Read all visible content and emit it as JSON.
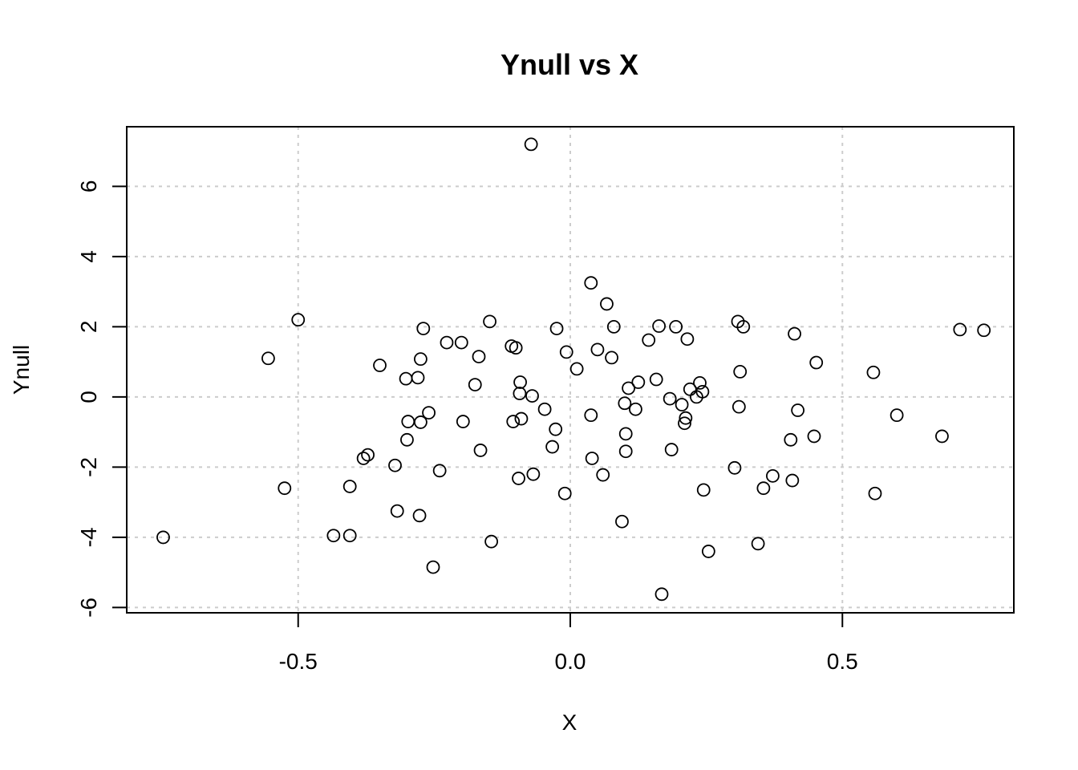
{
  "chart_data": {
    "type": "scatter",
    "title": "Ynull vs X",
    "xlabel": "X",
    "ylabel": "Ynull",
    "xlim": [
      -0.815,
      0.815
    ],
    "ylim": [
      -6.15,
      7.7
    ],
    "xticks": [
      -0.5,
      0.0,
      0.5
    ],
    "xtick_labels": [
      "-0.5",
      "0.0",
      "0.5"
    ],
    "yticks": [
      -6,
      -4,
      -2,
      0,
      2,
      4,
      6
    ],
    "ytick_labels": [
      "-6",
      "-4",
      "-2",
      "0",
      "2",
      "4",
      "6"
    ],
    "grid": true,
    "marker": "open-circle",
    "points": [
      [
        -0.748,
        -4.0
      ],
      [
        -0.555,
        1.1
      ],
      [
        -0.525,
        -2.6
      ],
      [
        -0.5,
        2.2
      ],
      [
        -0.435,
        -3.95
      ],
      [
        -0.405,
        -2.55
      ],
      [
        -0.405,
        -3.95
      ],
      [
        -0.38,
        -1.75
      ],
      [
        -0.372,
        -1.65
      ],
      [
        -0.35,
        0.9
      ],
      [
        -0.322,
        -1.95
      ],
      [
        -0.318,
        -3.25
      ],
      [
        -0.302,
        0.52
      ],
      [
        -0.3,
        -1.22
      ],
      [
        -0.298,
        -0.7
      ],
      [
        -0.28,
        0.55
      ],
      [
        -0.277,
        -3.38
      ],
      [
        -0.275,
        1.08
      ],
      [
        -0.275,
        -0.72
      ],
      [
        -0.27,
        1.95
      ],
      [
        -0.26,
        -0.45
      ],
      [
        -0.252,
        -4.85
      ],
      [
        -0.24,
        -2.1
      ],
      [
        -0.227,
        1.55
      ],
      [
        -0.2,
        1.55
      ],
      [
        -0.197,
        -0.7
      ],
      [
        -0.175,
        0.35
      ],
      [
        -0.168,
        1.15
      ],
      [
        -0.165,
        -1.52
      ],
      [
        -0.148,
        2.15
      ],
      [
        -0.145,
        -4.12
      ],
      [
        -0.108,
        1.45
      ],
      [
        -0.105,
        -0.7
      ],
      [
        -0.1,
        1.4
      ],
      [
        -0.095,
        -2.32
      ],
      [
        -0.093,
        0.1
      ],
      [
        -0.092,
        0.42
      ],
      [
        -0.09,
        -0.62
      ],
      [
        -0.072,
        7.2
      ],
      [
        -0.07,
        0.03
      ],
      [
        -0.068,
        -2.2
      ],
      [
        -0.047,
        -0.35
      ],
      [
        -0.033,
        -1.42
      ],
      [
        -0.027,
        -0.92
      ],
      [
        -0.025,
        1.95
      ],
      [
        -0.01,
        -2.75
      ],
      [
        -0.007,
        1.28
      ],
      [
        0.012,
        0.8
      ],
      [
        0.038,
        3.25
      ],
      [
        0.038,
        -0.52
      ],
      [
        0.04,
        -1.75
      ],
      [
        0.05,
        1.35
      ],
      [
        0.06,
        -2.22
      ],
      [
        0.067,
        2.65
      ],
      [
        0.076,
        1.12
      ],
      [
        0.08,
        2.0
      ],
      [
        0.095,
        -3.55
      ],
      [
        0.1,
        -0.18
      ],
      [
        0.102,
        -1.05
      ],
      [
        0.102,
        -1.55
      ],
      [
        0.107,
        0.25
      ],
      [
        0.12,
        -0.35
      ],
      [
        0.125,
        0.42
      ],
      [
        0.144,
        1.62
      ],
      [
        0.158,
        0.5
      ],
      [
        0.163,
        2.02
      ],
      [
        0.168,
        -5.62
      ],
      [
        0.183,
        -0.05
      ],
      [
        0.186,
        -1.5
      ],
      [
        0.194,
        2.0
      ],
      [
        0.205,
        -0.22
      ],
      [
        0.21,
        -0.75
      ],
      [
        0.212,
        -0.6
      ],
      [
        0.215,
        1.65
      ],
      [
        0.22,
        0.22
      ],
      [
        0.232,
        0.0
      ],
      [
        0.238,
        0.4
      ],
      [
        0.243,
        0.15
      ],
      [
        0.245,
        -2.65
      ],
      [
        0.254,
        -4.4
      ],
      [
        0.302,
        -2.02
      ],
      [
        0.308,
        2.15
      ],
      [
        0.31,
        -0.28
      ],
      [
        0.312,
        0.72
      ],
      [
        0.318,
        2.0
      ],
      [
        0.345,
        -4.18
      ],
      [
        0.355,
        -2.6
      ],
      [
        0.372,
        -2.25
      ],
      [
        0.405,
        -1.22
      ],
      [
        0.408,
        -2.38
      ],
      [
        0.412,
        1.8
      ],
      [
        0.418,
        -0.38
      ],
      [
        0.448,
        -1.12
      ],
      [
        0.452,
        0.98
      ],
      [
        0.557,
        0.7
      ],
      [
        0.56,
        -2.75
      ],
      [
        0.6,
        -0.52
      ],
      [
        0.683,
        -1.12
      ],
      [
        0.716,
        1.92
      ],
      [
        0.76,
        1.9
      ]
    ]
  }
}
